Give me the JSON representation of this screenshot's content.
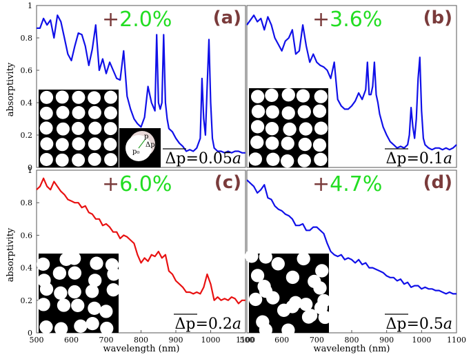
{
  "axes": {
    "ylabel": "absorptivity",
    "xlabel": "wavelength (nm)",
    "x_ticks": [
      "500",
      "600",
      "700",
      "800",
      "900",
      "1000",
      "1100"
    ],
    "y_ticks": [
      "0",
      "0.2",
      "0.4",
      "0.6",
      "0.8",
      "1"
    ]
  },
  "colors": {
    "blue": "#1010e8",
    "red": "#e81010",
    "green": "#22dd22",
    "maroon": "#7a3b3b"
  },
  "chart_data": [
    {
      "type": "line",
      "panel": "(a)",
      "letter": "(a)",
      "percent_sign": "+",
      "percent_value": "2.0%",
      "delta_label": "Δp=0.05",
      "delta_unit": "a",
      "line_color": "#1010e8",
      "xlim": [
        500,
        1100
      ],
      "ylim": [
        0,
        1
      ],
      "grid": false,
      "inset_labels": {
        "p": "p",
        "p0": "p₀",
        "dp": "Δp"
      },
      "x": [
        500,
        510,
        520,
        530,
        540,
        550,
        560,
        570,
        580,
        590,
        600,
        610,
        620,
        630,
        640,
        650,
        660,
        670,
        680,
        690,
        700,
        710,
        720,
        730,
        740,
        750,
        760,
        770,
        780,
        790,
        800,
        810,
        820,
        830,
        840,
        845,
        850,
        855,
        860,
        865,
        870,
        875,
        880,
        890,
        900,
        910,
        920,
        930,
        940,
        950,
        960,
        970,
        975,
        980,
        985,
        990,
        995,
        1000,
        1005,
        1010,
        1020,
        1030,
        1040,
        1050,
        1060,
        1070,
        1080,
        1090,
        1100
      ],
      "y": [
        0.86,
        0.86,
        0.92,
        0.88,
        0.91,
        0.8,
        0.94,
        0.9,
        0.8,
        0.7,
        0.66,
        0.75,
        0.83,
        0.82,
        0.75,
        0.63,
        0.73,
        0.88,
        0.6,
        0.67,
        0.58,
        0.65,
        0.6,
        0.55,
        0.54,
        0.72,
        0.44,
        0.36,
        0.3,
        0.27,
        0.25,
        0.31,
        0.5,
        0.4,
        0.35,
        0.82,
        0.4,
        0.36,
        0.4,
        0.82,
        0.4,
        0.3,
        0.24,
        0.22,
        0.18,
        0.15,
        0.13,
        0.1,
        0.11,
        0.1,
        0.12,
        0.18,
        0.55,
        0.3,
        0.2,
        0.5,
        0.79,
        0.4,
        0.18,
        0.12,
        0.1,
        0.1,
        0.09,
        0.1,
        0.09,
        0.1,
        0.1,
        0.09,
        0.09
      ]
    },
    {
      "type": "line",
      "panel": "(b)",
      "letter": "(b)",
      "percent_sign": "+",
      "percent_value": "3.6%",
      "delta_label": "Δp=0.1",
      "delta_unit": "a",
      "line_color": "#1010e8",
      "xlim": [
        500,
        1100
      ],
      "ylim": [
        0,
        1
      ],
      "grid": false,
      "x": [
        500,
        510,
        520,
        530,
        540,
        550,
        560,
        570,
        580,
        590,
        600,
        610,
        620,
        630,
        640,
        650,
        660,
        670,
        680,
        690,
        700,
        710,
        720,
        730,
        740,
        750,
        760,
        770,
        780,
        790,
        800,
        810,
        820,
        830,
        840,
        845,
        850,
        855,
        860,
        865,
        870,
        875,
        880,
        890,
        900,
        910,
        920,
        930,
        940,
        950,
        960,
        965,
        970,
        975,
        980,
        985,
        990,
        995,
        1000,
        1005,
        1010,
        1020,
        1030,
        1040,
        1050,
        1060,
        1070,
        1080,
        1090,
        1100
      ],
      "y": [
        0.88,
        0.91,
        0.94,
        0.9,
        0.92,
        0.85,
        0.93,
        0.88,
        0.8,
        0.76,
        0.72,
        0.78,
        0.8,
        0.85,
        0.7,
        0.72,
        0.88,
        0.75,
        0.65,
        0.7,
        0.65,
        0.63,
        0.62,
        0.6,
        0.55,
        0.65,
        0.42,
        0.38,
        0.36,
        0.36,
        0.38,
        0.41,
        0.46,
        0.42,
        0.48,
        0.65,
        0.45,
        0.45,
        0.5,
        0.65,
        0.45,
        0.4,
        0.33,
        0.25,
        0.2,
        0.16,
        0.14,
        0.12,
        0.13,
        0.12,
        0.14,
        0.2,
        0.37,
        0.25,
        0.18,
        0.3,
        0.55,
        0.68,
        0.35,
        0.18,
        0.14,
        0.12,
        0.11,
        0.12,
        0.12,
        0.11,
        0.12,
        0.11,
        0.12,
        0.14
      ]
    },
    {
      "type": "line",
      "panel": "(c)",
      "letter": "(c)",
      "percent_sign": "+",
      "percent_value": "6.0%",
      "delta_label": "Δp=0.2",
      "delta_unit": "a",
      "line_color": "#e81010",
      "xlim": [
        500,
        1100
      ],
      "ylim": [
        0,
        1
      ],
      "grid": false,
      "x": [
        500,
        510,
        520,
        530,
        540,
        550,
        560,
        570,
        580,
        590,
        600,
        610,
        620,
        630,
        640,
        650,
        660,
        670,
        680,
        690,
        700,
        710,
        720,
        730,
        740,
        750,
        760,
        770,
        780,
        790,
        800,
        810,
        820,
        830,
        840,
        850,
        860,
        870,
        880,
        890,
        900,
        910,
        920,
        930,
        940,
        950,
        960,
        970,
        980,
        990,
        1000,
        1010,
        1020,
        1030,
        1040,
        1050,
        1060,
        1070,
        1080,
        1090,
        1100
      ],
      "y": [
        0.88,
        0.9,
        0.95,
        0.9,
        0.88,
        0.93,
        0.9,
        0.87,
        0.85,
        0.82,
        0.81,
        0.8,
        0.8,
        0.77,
        0.78,
        0.74,
        0.73,
        0.7,
        0.7,
        0.66,
        0.67,
        0.65,
        0.62,
        0.62,
        0.58,
        0.6,
        0.59,
        0.57,
        0.55,
        0.48,
        0.43,
        0.46,
        0.44,
        0.48,
        0.47,
        0.5,
        0.46,
        0.48,
        0.38,
        0.36,
        0.32,
        0.3,
        0.28,
        0.25,
        0.25,
        0.24,
        0.25,
        0.24,
        0.28,
        0.36,
        0.3,
        0.2,
        0.22,
        0.2,
        0.21,
        0.2,
        0.22,
        0.21,
        0.18,
        0.2,
        0.2
      ]
    },
    {
      "type": "line",
      "panel": "(d)",
      "letter": "(d)",
      "percent_sign": "+",
      "percent_value": "4.7%",
      "delta_label": "Δp=0.5",
      "delta_unit": "a",
      "line_color": "#1010e8",
      "xlim": [
        500,
        1100
      ],
      "ylim": [
        0,
        1
      ],
      "grid": false,
      "x": [
        500,
        510,
        520,
        530,
        540,
        550,
        560,
        570,
        580,
        590,
        600,
        610,
        620,
        630,
        640,
        650,
        660,
        670,
        680,
        690,
        700,
        710,
        720,
        730,
        740,
        750,
        760,
        770,
        780,
        790,
        800,
        810,
        820,
        830,
        840,
        850,
        860,
        870,
        880,
        890,
        900,
        910,
        920,
        930,
        940,
        950,
        960,
        970,
        980,
        990,
        1000,
        1010,
        1020,
        1030,
        1040,
        1050,
        1060,
        1070,
        1080,
        1090,
        1100
      ],
      "y": [
        0.94,
        0.92,
        0.9,
        0.86,
        0.88,
        0.91,
        0.83,
        0.82,
        0.78,
        0.76,
        0.75,
        0.73,
        0.72,
        0.7,
        0.66,
        0.66,
        0.67,
        0.63,
        0.63,
        0.65,
        0.65,
        0.63,
        0.61,
        0.55,
        0.5,
        0.48,
        0.47,
        0.48,
        0.45,
        0.46,
        0.45,
        0.43,
        0.45,
        0.42,
        0.43,
        0.4,
        0.4,
        0.39,
        0.38,
        0.37,
        0.35,
        0.34,
        0.34,
        0.32,
        0.33,
        0.3,
        0.31,
        0.28,
        0.29,
        0.29,
        0.27,
        0.28,
        0.27,
        0.27,
        0.26,
        0.26,
        0.25,
        0.24,
        0.25,
        0.24,
        0.24
      ]
    }
  ]
}
